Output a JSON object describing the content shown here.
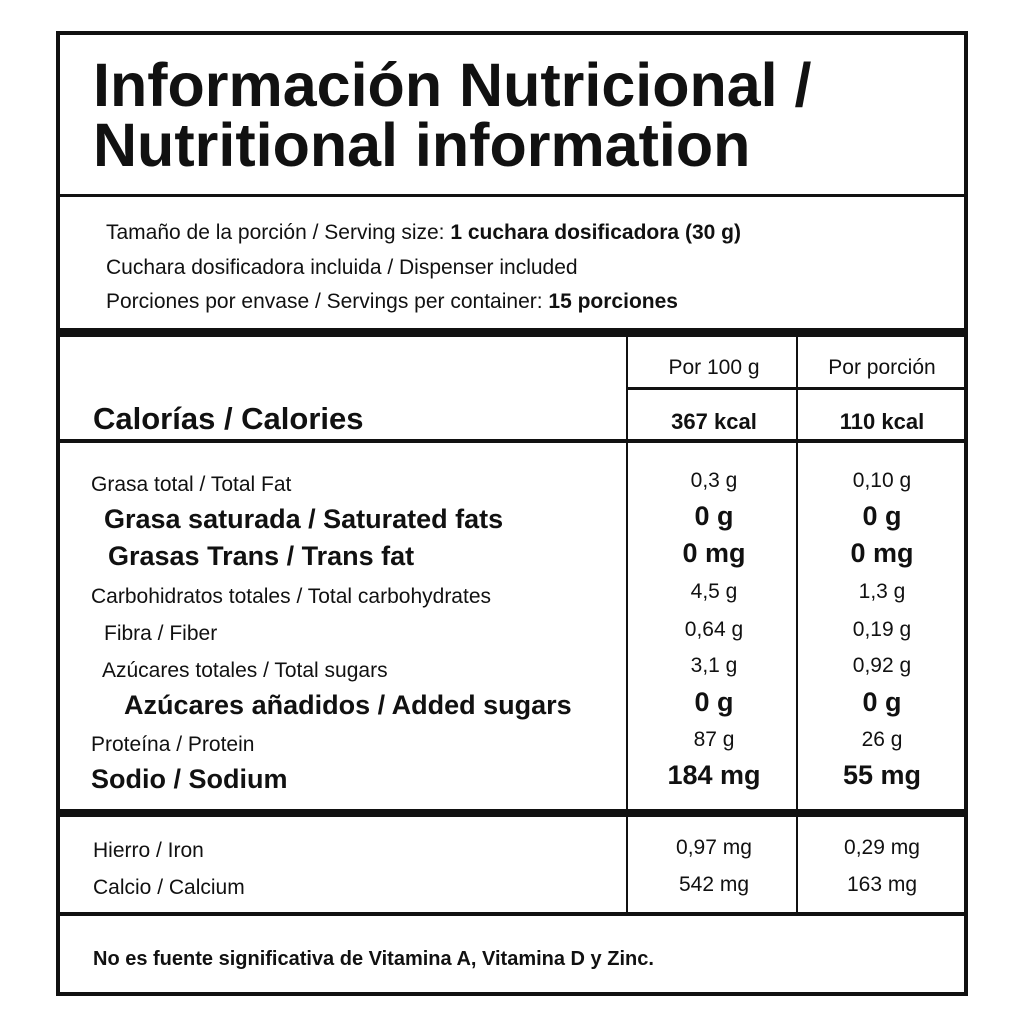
{
  "title": {
    "line1": "Información Nutricional /",
    "line2": "Nutritional information"
  },
  "serving": {
    "size_label": "Tamaño de la porción / Serving size: ",
    "size_value": "1 cuchara dosificadora (30 g)",
    "dispenser": "Cuchara dosificadora incluida / Dispenser included",
    "servings_label": "Porciones por envase / Servings per container: ",
    "servings_value": "15 porciones"
  },
  "columns": {
    "per100": "Por 100 g",
    "perserving": "Por porción"
  },
  "calories": {
    "label": "Calorías / Calories",
    "per100": "367 kcal",
    "perserving": "110 kcal"
  },
  "nutrients": [
    {
      "label": "Grasa total / Total Fat",
      "per100": "0,3 g",
      "perserving": "0,10 g"
    },
    {
      "label": "Grasa saturada / Saturated fats",
      "per100": "0 g",
      "perserving": "0 g"
    },
    {
      "label": "Grasas Trans / Trans fat",
      "per100": "0 mg",
      "perserving": "0 mg"
    },
    {
      "label": "Carbohidratos totales / Total carbohydrates",
      "per100": "4,5 g",
      "perserving": "1,3 g"
    },
    {
      "label": "Fibra / Fiber",
      "per100": "0,64 g",
      "perserving": "0,19 g"
    },
    {
      "label": "Azúcares totales / Total sugars",
      "per100": "3,1 g",
      "perserving": "0,92 g"
    },
    {
      "label": "Azúcares añadidos / Added sugars",
      "per100": "0 g",
      "perserving": "0 g"
    },
    {
      "label": "Proteína / Protein",
      "per100": "87 g",
      "perserving": "26 g"
    },
    {
      "label": "Sodio / Sodium",
      "per100": "184 mg",
      "perserving": "55 mg"
    }
  ],
  "minerals": [
    {
      "label": "Hierro / Iron",
      "per100": "0,97 mg",
      "perserving": "0,29 mg"
    },
    {
      "label": "Calcio / Calcium",
      "per100": "542 mg",
      "perserving": "163 mg"
    }
  ],
  "footnote": "No es fuente significativa de Vitamina A, Vitamina D y Zinc."
}
